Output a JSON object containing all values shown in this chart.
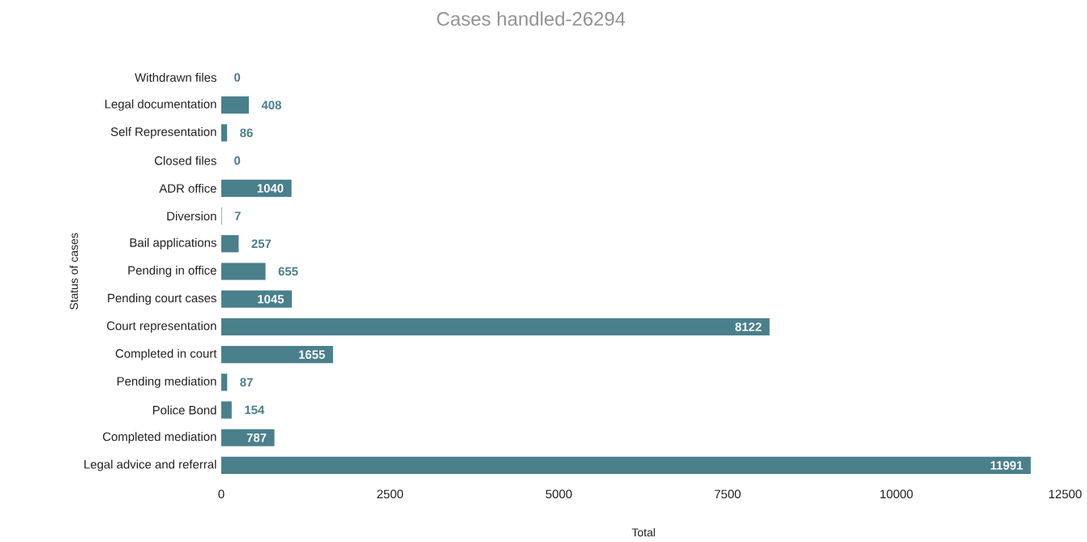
{
  "chart_data": {
    "type": "bar",
    "orientation": "horizontal",
    "title": "Cases handled-26294",
    "xlabel": "Total",
    "ylabel": "Status of cases",
    "categories": [
      "Withdrawn files",
      "Legal documentation",
      "Self Representation",
      "Closed files",
      "ADR office",
      "Diversion",
      "Bail applications",
      "Pending in office",
      "Pending court cases",
      "Court representation",
      "Completed in court",
      "Pending mediation",
      "Police Bond",
      "Completed mediation",
      "Legal advice and referral"
    ],
    "values": [
      0,
      408,
      86,
      0,
      1040,
      7,
      257,
      655,
      1045,
      8122,
      1655,
      87,
      154,
      787,
      11991
    ],
    "color": "#4a7f8c",
    "xlim": [
      0,
      12500
    ],
    "xticks": [
      0,
      2500,
      5000,
      7500,
      10000,
      12500
    ],
    "data_labels": true,
    "grid": false
  }
}
